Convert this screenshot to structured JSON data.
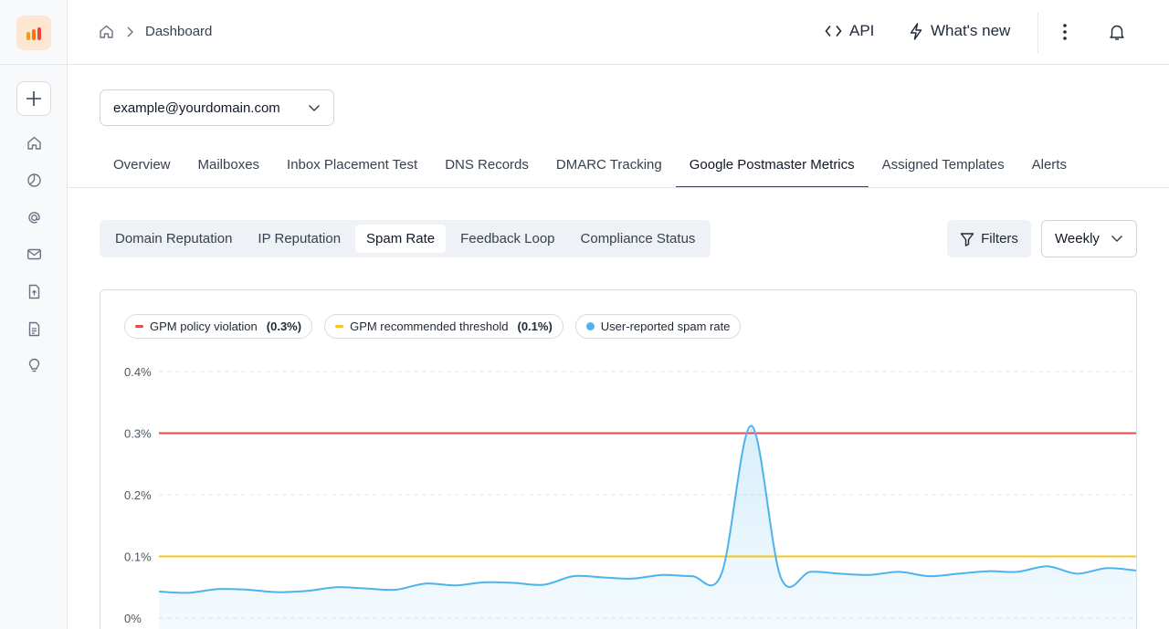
{
  "header": {
    "breadcrumb": "Dashboard",
    "api_label": "API",
    "whats_new_label": "What's new"
  },
  "domain_select": {
    "value": "example@yourdomain.com"
  },
  "tabs": [
    {
      "label": "Overview"
    },
    {
      "label": "Mailboxes"
    },
    {
      "label": "Inbox Placement Test"
    },
    {
      "label": "DNS Records"
    },
    {
      "label": "DMARC Tracking"
    },
    {
      "label": "Google Postmaster Metrics",
      "active": true
    },
    {
      "label": "Assigned Templates"
    },
    {
      "label": "Alerts"
    }
  ],
  "subtabs": [
    {
      "label": "Domain Reputation"
    },
    {
      "label": "IP Reputation"
    },
    {
      "label": "Spam Rate",
      "active": true
    },
    {
      "label": "Feedback Loop"
    },
    {
      "label": "Compliance Status"
    }
  ],
  "toolbar": {
    "filters_label": "Filters",
    "period_value": "Weekly"
  },
  "legend": [
    {
      "label": "GPM policy violation",
      "value": "(0.3%)",
      "color": "#e5484d"
    },
    {
      "label": "GPM recommended threshold",
      "value": "(0.1%)",
      "color": "#f5c518"
    },
    {
      "label": "User-reported spam rate",
      "value": "",
      "color": "#4db3ec"
    }
  ],
  "chart_data": {
    "type": "area",
    "yticks": [
      "0.4%",
      "0.3%",
      "0.2%",
      "0.1%",
      "0%"
    ],
    "ylim": [
      0,
      0.4
    ],
    "grid": true,
    "reference_lines": [
      {
        "name": "GPM policy violation",
        "value": 0.3,
        "color": "#e5484d"
      },
      {
        "name": "GPM recommended threshold",
        "value": 0.1,
        "color": "#f5c518"
      }
    ],
    "series": [
      {
        "name": "User-reported spam rate",
        "color": "#4db3ec",
        "values": [
          0.043,
          0.041,
          0.047,
          0.046,
          0.042,
          0.044,
          0.05,
          0.048,
          0.046,
          0.056,
          0.053,
          0.058,
          0.057,
          0.054,
          0.068,
          0.066,
          0.064,
          0.07,
          0.068,
          0.072,
          0.312,
          0.066,
          0.075,
          0.072,
          0.07,
          0.075,
          0.068,
          0.072,
          0.076,
          0.075,
          0.084,
          0.072,
          0.081,
          0.077
        ]
      }
    ]
  }
}
